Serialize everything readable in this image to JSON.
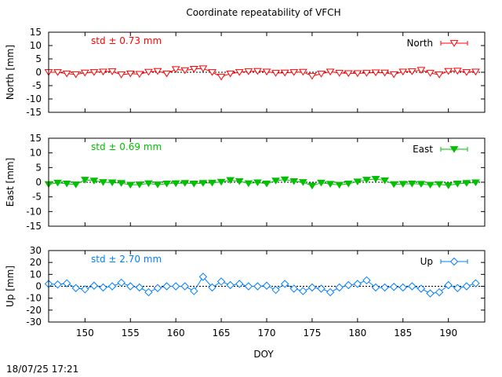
{
  "title": "Coordinate repeatability of VFCH",
  "xlabel": "DOY",
  "timestamp": "18/07/25 17:21",
  "chart_data": [
    {
      "type": "line",
      "component": "north",
      "ylabel": "North [mm]",
      "legend": "North",
      "stat_label": "std ± 0.73 mm",
      "color": "#ff0000",
      "marker": "triangle-down-open",
      "xlim": [
        146,
        194
      ],
      "ylim": [
        -15,
        15
      ],
      "x_ticks": [
        150,
        155,
        160,
        165,
        170,
        175,
        180,
        185,
        190
      ],
      "y_ticks": [
        -15,
        -10,
        -5,
        0,
        5,
        10,
        15
      ],
      "grid": false,
      "legend_position": "top-right",
      "x": [
        146,
        147,
        148,
        149,
        150,
        151,
        152,
        153,
        154,
        155,
        156,
        157,
        158,
        159,
        160,
        161,
        162,
        163,
        164,
        165,
        166,
        167,
        168,
        169,
        170,
        171,
        172,
        173,
        174,
        175,
        176,
        177,
        178,
        179,
        180,
        181,
        182,
        183,
        184,
        185,
        186,
        187,
        188,
        189,
        190,
        191,
        192,
        193
      ],
      "values": [
        0.0,
        0.0,
        -0.5,
        -0.8,
        -0.2,
        0.0,
        0.2,
        0.3,
        -0.9,
        -0.5,
        -0.7,
        0.1,
        0.4,
        -0.5,
        1.1,
        0.7,
        1.2,
        1.4,
        0.0,
        -1.7,
        -0.5,
        0.0,
        0.3,
        0.4,
        0.2,
        -0.3,
        -0.2,
        0.0,
        0.1,
        -1.4,
        -0.6,
        0.2,
        -0.3,
        -0.4,
        -0.4,
        -0.3,
        -0.1,
        -0.2,
        -0.8,
        0.2,
        0.3,
        0.8,
        -0.3,
        -0.9,
        0.4,
        0.5,
        0.0,
        0.2
      ]
    },
    {
      "type": "line",
      "component": "east",
      "ylabel": "East [mm]",
      "legend": "East",
      "stat_label": "std ± 0.69 mm",
      "color": "#00c000",
      "marker": "triangle-down-filled",
      "xlim": [
        146,
        194
      ],
      "ylim": [
        -15,
        15
      ],
      "x_ticks": [
        150,
        155,
        160,
        165,
        170,
        175,
        180,
        185,
        190
      ],
      "y_ticks": [
        -15,
        -10,
        -5,
        0,
        5,
        10,
        15
      ],
      "grid": false,
      "legend_position": "top-right",
      "x": [
        146,
        147,
        148,
        149,
        150,
        151,
        152,
        153,
        154,
        155,
        156,
        157,
        158,
        159,
        160,
        161,
        162,
        163,
        164,
        165,
        166,
        167,
        168,
        169,
        170,
        171,
        172,
        173,
        174,
        175,
        176,
        177,
        178,
        179,
        180,
        181,
        182,
        183,
        184,
        185,
        186,
        187,
        188,
        189,
        190,
        191,
        192,
        193
      ],
      "values": [
        -0.7,
        -0.2,
        -0.5,
        -0.8,
        0.8,
        0.5,
        0.0,
        -0.1,
        -0.3,
        -0.9,
        -0.8,
        -0.4,
        -0.8,
        -0.5,
        -0.4,
        -0.3,
        -0.5,
        -0.3,
        -0.2,
        0.1,
        0.7,
        0.3,
        -0.4,
        -0.1,
        -0.5,
        0.5,
        0.9,
        0.3,
        0.0,
        -1.2,
        -0.2,
        -0.6,
        -0.9,
        -0.5,
        0.2,
        0.8,
        1.1,
        0.6,
        -0.7,
        -0.6,
        -0.5,
        -0.6,
        -0.9,
        -0.7,
        -1.1,
        -0.5,
        -0.3,
        -0.1
      ]
    },
    {
      "type": "line",
      "component": "up",
      "ylabel": "Up [mm]",
      "legend": "Up",
      "stat_label": "std ± 2.70 mm",
      "color": "#0080ff",
      "marker": "diamond-open",
      "xlim": [
        146,
        194
      ],
      "ylim": [
        -30,
        30
      ],
      "x_ticks": [
        150,
        155,
        160,
        165,
        170,
        175,
        180,
        185,
        190
      ],
      "y_ticks": [
        -30,
        -20,
        -10,
        0,
        10,
        20,
        30
      ],
      "grid": false,
      "legend_position": "top-right",
      "x": [
        146,
        147,
        148,
        149,
        150,
        151,
        152,
        153,
        154,
        155,
        156,
        157,
        158,
        159,
        160,
        161,
        162,
        163,
        164,
        165,
        166,
        167,
        168,
        169,
        170,
        171,
        172,
        173,
        174,
        175,
        176,
        177,
        178,
        179,
        180,
        181,
        182,
        183,
        184,
        185,
        186,
        187,
        188,
        189,
        190,
        191,
        192,
        193
      ],
      "values": [
        2.0,
        1.5,
        2.5,
        -1.5,
        -2.5,
        0.5,
        -1.0,
        0.0,
        3.0,
        0.0,
        -1.0,
        -5.0,
        -1.5,
        0.0,
        0.0,
        0.0,
        -4.0,
        8.0,
        -1.0,
        4.0,
        1.0,
        2.0,
        0.0,
        0.0,
        0.5,
        -3.0,
        2.0,
        -2.0,
        -4.0,
        -1.0,
        -2.0,
        -5.0,
        -1.0,
        1.0,
        2.0,
        5.0,
        -1.0,
        -1.0,
        -0.5,
        -1.0,
        0.0,
        -2.0,
        -6.0,
        -5.0,
        1.0,
        -1.5,
        0.0,
        2.5
      ]
    }
  ]
}
